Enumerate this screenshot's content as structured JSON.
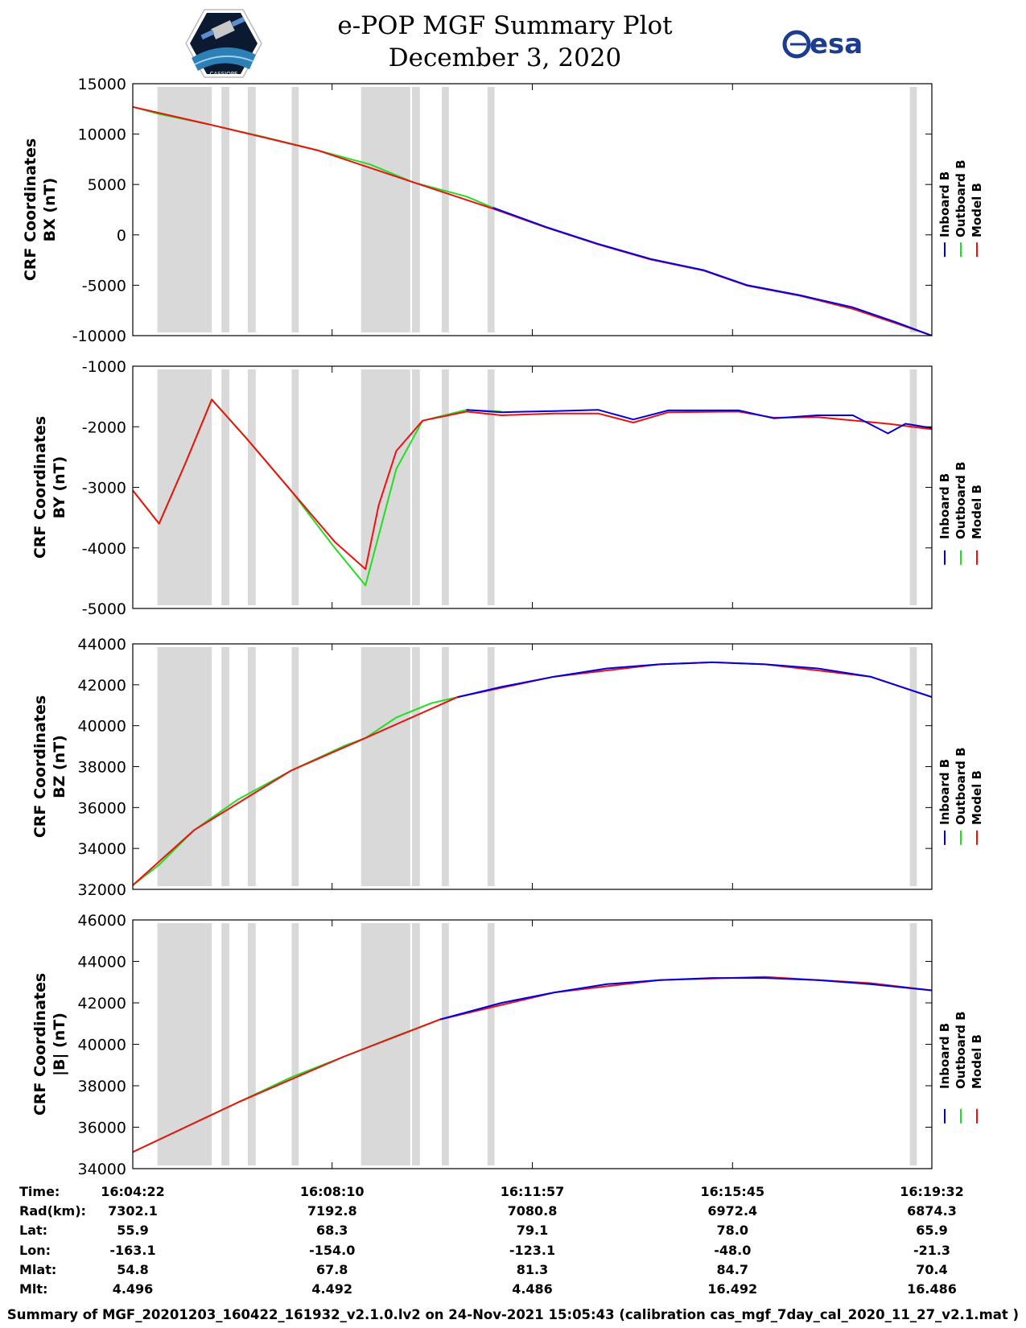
{
  "header": {
    "title_line1": "e-POP MGF Summary Plot",
    "title_line2": "December 3, 2020",
    "left_logo_text": "CASSIOPE",
    "right_logo_text": "esa"
  },
  "colors": {
    "inboard": "#0000dd",
    "outboard": "#22dd22",
    "model": "#ee1111",
    "gap": "#d9d9d9"
  },
  "legend": [
    "Inboard B",
    "Outboard B",
    "Model B"
  ],
  "chart_data": [
    {
      "type": "line",
      "ylabel_line1": "CRF Coordinates",
      "ylabel_line2": "BX (nT)",
      "ylim": [
        -10000,
        15000
      ],
      "yticks": [
        15000,
        10000,
        5000,
        0,
        -5000,
        -10000
      ],
      "xlim": [
        0,
        910
      ],
      "series": [
        {
          "name": "Outboard B",
          "x": [
            0,
            30,
            90,
            150,
            210,
            270,
            320,
            380,
            410
          ],
          "values": [
            12700,
            12000,
            10900,
            9700,
            8400,
            7000,
            5200,
            3800,
            2700
          ]
        },
        {
          "name": "Inboard B",
          "x": [
            410,
            470,
            530,
            590,
            650,
            700,
            760,
            820,
            870,
            910
          ],
          "values": [
            2700,
            800,
            -900,
            -2400,
            -3500,
            -5000,
            -6000,
            -7200,
            -8700,
            -10000
          ]
        },
        {
          "name": "Model B",
          "x": [
            0,
            90,
            210,
            320,
            410,
            470,
            530,
            590,
            650,
            700,
            760,
            820,
            870,
            910
          ],
          "values": [
            12700,
            10900,
            8400,
            5200,
            2600,
            750,
            -950,
            -2450,
            -3550,
            -5050,
            -6050,
            -7350,
            -8800,
            -10000
          ]
        }
      ]
    },
    {
      "type": "line",
      "ylabel_line1": "CRF Coordinates",
      "ylabel_line2": "BY (nT)",
      "ylim": [
        -5000,
        -1000
      ],
      "yticks": [
        -1000,
        -2000,
        -3000,
        -4000,
        -5000
      ],
      "xlim": [
        0,
        910
      ],
      "series": [
        {
          "name": "Outboard B",
          "x": [
            0,
            30,
            60,
            90,
            130,
            180,
            230,
            265,
            280,
            300,
            330,
            380,
            420
          ],
          "values": [
            -3050,
            -3600,
            -2600,
            -1550,
            -2200,
            -3050,
            -4000,
            -4620,
            -3800,
            -2700,
            -1900,
            -1720,
            -1750
          ]
        },
        {
          "name": "Inboard B",
          "x": [
            380,
            420,
            480,
            530,
            570,
            610,
            690,
            730,
            780,
            820,
            860,
            880,
            910
          ],
          "values": [
            -1720,
            -1760,
            -1740,
            -1720,
            -1880,
            -1730,
            -1730,
            -1860,
            -1810,
            -1810,
            -2110,
            -1950,
            -2020
          ]
        },
        {
          "name": "Model B",
          "x": [
            0,
            30,
            60,
            90,
            130,
            180,
            230,
            265,
            280,
            300,
            330,
            380,
            420,
            480,
            530,
            570,
            610,
            690,
            730,
            780,
            860,
            910
          ],
          "values": [
            -3050,
            -3600,
            -2600,
            -1550,
            -2200,
            -3050,
            -3900,
            -4350,
            -3300,
            -2400,
            -1900,
            -1750,
            -1810,
            -1780,
            -1780,
            -1930,
            -1760,
            -1750,
            -1850,
            -1840,
            -1950,
            -2040
          ]
        }
      ]
    },
    {
      "type": "line",
      "ylabel_line1": "CRF Coordinates",
      "ylabel_line2": "BZ (nT)",
      "ylim": [
        32000,
        44000
      ],
      "yticks": [
        44000,
        42000,
        40000,
        38000,
        36000,
        34000,
        32000
      ],
      "xlim": [
        0,
        910
      ],
      "series": [
        {
          "name": "Outboard B",
          "x": [
            0,
            30,
            70,
            120,
            180,
            240,
            265,
            300,
            340,
            370
          ],
          "values": [
            32200,
            33200,
            34900,
            36400,
            37800,
            39000,
            39400,
            40400,
            41100,
            41400
          ]
        },
        {
          "name": "Inboard B",
          "x": [
            370,
            420,
            480,
            540,
            600,
            660,
            720,
            780,
            840,
            910
          ],
          "values": [
            41400,
            41900,
            42400,
            42800,
            43000,
            43100,
            43000,
            42800,
            42400,
            41400
          ]
        },
        {
          "name": "Model B",
          "x": [
            0,
            70,
            180,
            265,
            370,
            480,
            600,
            660,
            720,
            840,
            910
          ],
          "values": [
            32200,
            34900,
            37800,
            39400,
            41400,
            42400,
            43000,
            43100,
            43000,
            42400,
            41400
          ]
        }
      ]
    },
    {
      "type": "line",
      "ylabel_line1": "CRF Coordinates",
      "ylabel_line2": "|B| (nT)",
      "ylim": [
        34000,
        46000
      ],
      "yticks": [
        46000,
        44000,
        42000,
        40000,
        38000,
        36000,
        34000
      ],
      "xlim": [
        0,
        910
      ],
      "series": [
        {
          "name": "Outboard B",
          "x": [
            0,
            60,
            120,
            180,
            240,
            300,
            350
          ],
          "values": [
            34800,
            36000,
            37200,
            38400,
            39400,
            40400,
            41200
          ]
        },
        {
          "name": "Inboard B",
          "x": [
            350,
            420,
            480,
            540,
            600,
            660,
            720,
            780,
            840,
            910
          ],
          "values": [
            41200,
            42000,
            42500,
            42900,
            43100,
            43200,
            43200,
            43100,
            42900,
            42600
          ]
        },
        {
          "name": "Model B",
          "x": [
            0,
            120,
            240,
            350,
            480,
            600,
            720,
            840,
            910
          ],
          "values": [
            34800,
            37200,
            39400,
            41200,
            42500,
            43100,
            43250,
            42950,
            42600
          ]
        }
      ]
    }
  ],
  "gaps": [
    [
      28,
      90
    ],
    [
      101,
      110
    ],
    [
      131,
      140
    ],
    [
      181,
      189
    ],
    [
      260,
      316
    ],
    [
      318,
      327
    ],
    [
      352,
      360
    ],
    [
      404,
      412
    ],
    [
      885,
      893
    ]
  ],
  "x_tick_positions": [
    0,
    227,
    455,
    683,
    910
  ],
  "info_table": {
    "row_labels": [
      "Time:",
      "Rad(km):",
      "Lat:",
      "Lon:",
      "Mlat:",
      "Mlt:"
    ],
    "columns": [
      [
        "16:04:22",
        "7302.1",
        "55.9",
        "-163.1",
        "54.8",
        "4.496"
      ],
      [
        "16:08:10",
        "7192.8",
        "68.3",
        "-154.0",
        "67.8",
        "4.492"
      ],
      [
        "16:11:57",
        "7080.8",
        "79.1",
        "-123.1",
        "81.3",
        "4.486"
      ],
      [
        "16:15:45",
        "6972.4",
        "78.0",
        "-48.0",
        "84.7",
        "16.492"
      ],
      [
        "16:19:32",
        "6874.3",
        "65.9",
        "-21.3",
        "70.4",
        "16.486"
      ]
    ]
  },
  "footer": "Summary of MGF_20201203_160422_161932_v2.1.0.lv2 on 24-Nov-2021 15:05:43 (calibration cas_mgf_7day_cal_2020_11_27_v2.1.mat )"
}
